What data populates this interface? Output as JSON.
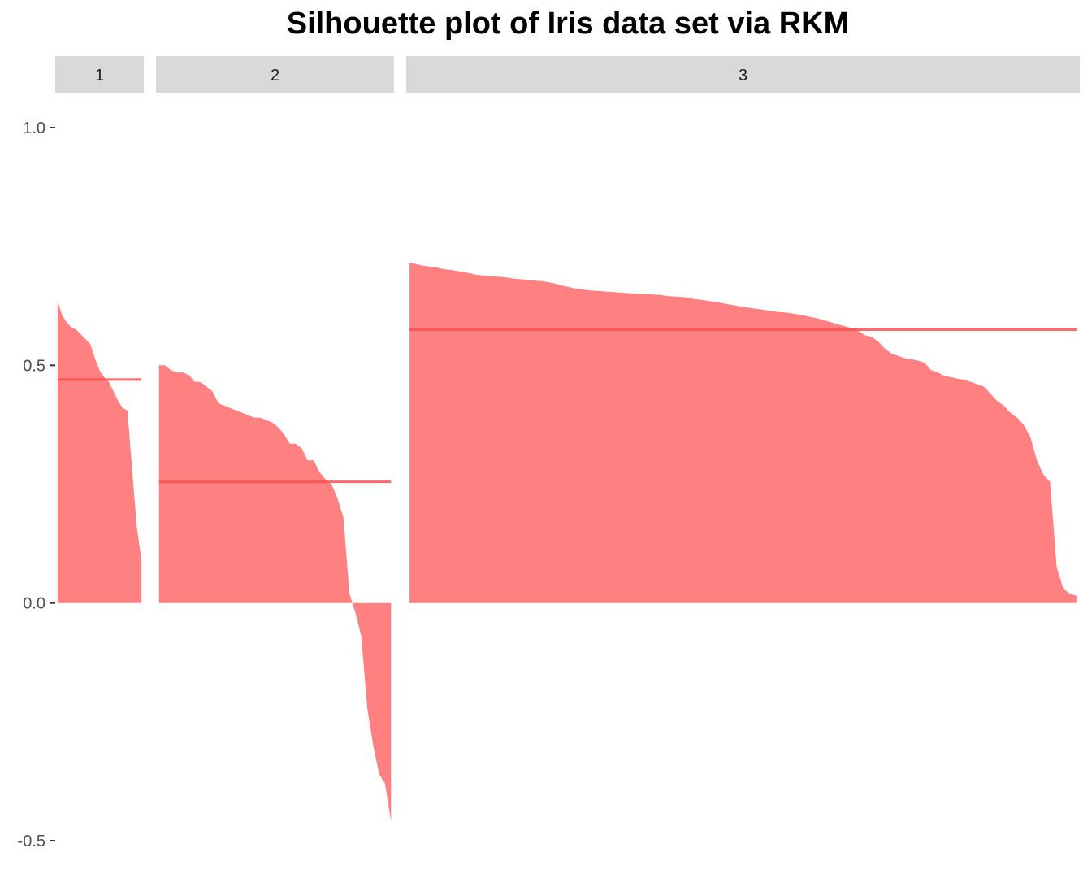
{
  "chart_data": {
    "type": "area",
    "title": "Silhouette plot of Iris data set via RKM",
    "xlabel": "",
    "ylabel": "",
    "ylim": [
      -0.5,
      1.0
    ],
    "y_ticks": [
      {
        "value": -0.5,
        "label": "-0.5"
      },
      {
        "value": 0.0,
        "label": "0.0"
      },
      {
        "value": 0.5,
        "label": "0.5"
      },
      {
        "value": 1.0,
        "label": "1.0"
      }
    ],
    "grid": false,
    "fill_color": "#ff8080",
    "mean_line_color": "#ff4d4d",
    "strip_color": "#d9d9d9",
    "panels": [
      {
        "cluster": "1",
        "mean": 0.47,
        "values": [
          0.635,
          0.605,
          0.59,
          0.58,
          0.575,
          0.565,
          0.555,
          0.545,
          0.515,
          0.49,
          0.475,
          0.465,
          0.445,
          0.425,
          0.41,
          0.405,
          0.28,
          0.16,
          0.09
        ]
      },
      {
        "cluster": "2",
        "mean": 0.255,
        "values": [
          0.5,
          0.5,
          0.49,
          0.485,
          0.485,
          0.48,
          0.465,
          0.465,
          0.455,
          0.445,
          0.42,
          0.415,
          0.41,
          0.405,
          0.4,
          0.395,
          0.39,
          0.39,
          0.385,
          0.38,
          0.37,
          0.355,
          0.335,
          0.335,
          0.325,
          0.3,
          0.3,
          0.275,
          0.26,
          0.25,
          0.22,
          0.18,
          0.02,
          -0.02,
          -0.07,
          -0.22,
          -0.3,
          -0.36,
          -0.38,
          -0.46
        ]
      },
      {
        "cluster": "3",
        "mean": 0.575,
        "values": [
          0.715,
          0.713,
          0.71,
          0.708,
          0.706,
          0.703,
          0.701,
          0.699,
          0.697,
          0.694,
          0.691,
          0.689,
          0.688,
          0.687,
          0.686,
          0.684,
          0.682,
          0.681,
          0.68,
          0.678,
          0.677,
          0.675,
          0.672,
          0.668,
          0.665,
          0.662,
          0.66,
          0.658,
          0.657,
          0.656,
          0.655,
          0.654,
          0.653,
          0.652,
          0.651,
          0.65,
          0.65,
          0.649,
          0.648,
          0.646,
          0.645,
          0.644,
          0.643,
          0.64,
          0.638,
          0.636,
          0.634,
          0.632,
          0.629,
          0.627,
          0.624,
          0.622,
          0.62,
          0.618,
          0.616,
          0.614,
          0.612,
          0.611,
          0.609,
          0.607,
          0.604,
          0.601,
          0.598,
          0.594,
          0.59,
          0.586,
          0.582,
          0.578,
          0.572,
          0.563,
          0.56,
          0.55,
          0.535,
          0.525,
          0.52,
          0.515,
          0.513,
          0.51,
          0.505,
          0.49,
          0.485,
          0.478,
          0.475,
          0.472,
          0.47,
          0.465,
          0.46,
          0.455,
          0.44,
          0.425,
          0.415,
          0.4,
          0.39,
          0.375,
          0.35,
          0.3,
          0.27,
          0.255,
          0.075,
          0.03,
          0.02,
          0.015
        ]
      }
    ]
  }
}
